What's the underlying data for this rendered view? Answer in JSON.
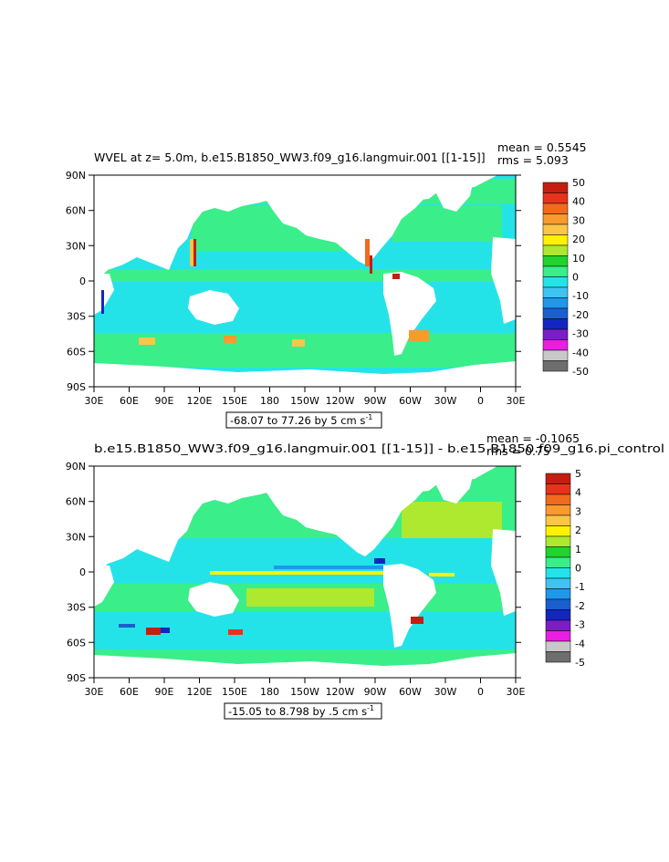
{
  "chart_data": [
    {
      "type": "heatmap",
      "title_left": "WVEL at z=     5.0m, b.e15.B1850_WW3.f09_g16.langmuir.001 [[1-15]]",
      "stats": [
        "mean = 0.5545",
        "rms = 5.093"
      ],
      "x_ticks": [
        "30E",
        "60E",
        "90E",
        "120E",
        "150E",
        "180",
        "150W",
        "120W",
        "90W",
        "60W",
        "30W",
        "0",
        "30E"
      ],
      "y_ticks": [
        "90N",
        "60N",
        "30N",
        "0",
        "30S",
        "60S",
        "90S"
      ],
      "colorbar_labels": [
        "50",
        "40",
        "30",
        "20",
        "10",
        "0",
        "-10",
        "-20",
        "-30",
        "-40",
        "-50"
      ],
      "colorbar_colors": [
        "#c41e10",
        "#e8321c",
        "#f26a1e",
        "#f99a2e",
        "#fbc548",
        "#fff200",
        "#aee82f",
        "#22d22e",
        "#3aee8a",
        "#24e3e8",
        "#3fc4f2",
        "#1f97ea",
        "#1a5fd0",
        "#1426c0",
        "#7a1ec8",
        "#e81ee0",
        "#c8c8c8",
        "#6e6e6e"
      ],
      "range_box": "-68.07 to 77.26 by 5 cm s",
      "range_unit_exp": "-1"
    },
    {
      "type": "heatmap",
      "title_left": "b.e15.B1850_WW3.f09_g16.langmuir.001 [[1-15]] - b.e15.B1850.f09_g16.pi_control",
      "stats": [
        "mean = -0.1065",
        "rms = 0.75"
      ],
      "x_ticks": [
        "30E",
        "60E",
        "90E",
        "120E",
        "150E",
        "180",
        "150W",
        "120W",
        "90W",
        "60W",
        "30W",
        "0",
        "30E"
      ],
      "y_ticks": [
        "90N",
        "60N",
        "30N",
        "0",
        "30S",
        "60S",
        "90S"
      ],
      "colorbar_labels": [
        "5",
        "4",
        "3",
        "2",
        "1",
        "0",
        "-1",
        "-2",
        "-3",
        "-4",
        "-5"
      ],
      "colorbar_colors": [
        "#c41e10",
        "#e8321c",
        "#f26a1e",
        "#f99a2e",
        "#fbc548",
        "#fff200",
        "#aee82f",
        "#22d22e",
        "#3aee8a",
        "#24e3e8",
        "#3fc4f2",
        "#1f97ea",
        "#1a5fd0",
        "#1426c0",
        "#7a1ec8",
        "#e81ee0",
        "#c8c8c8",
        "#6e6e6e"
      ],
      "range_box": "-15.05 to 8.798 by .5 cm s",
      "range_unit_exp": "-1"
    }
  ]
}
